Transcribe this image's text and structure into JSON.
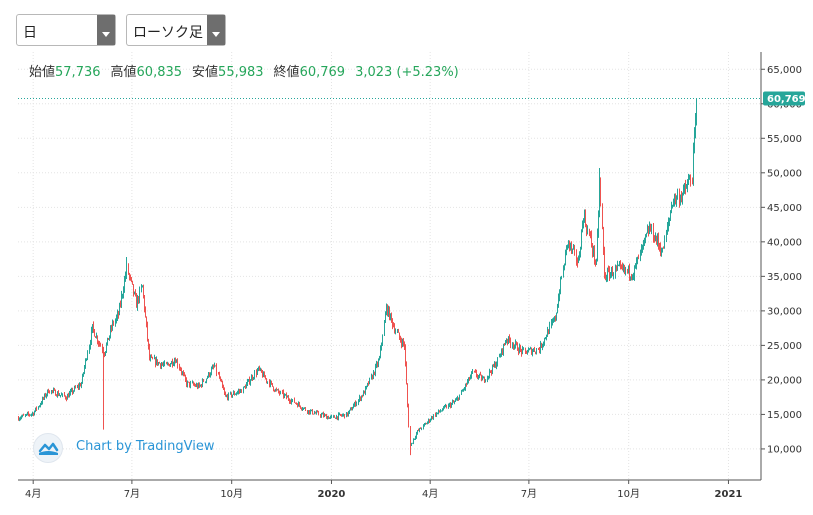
{
  "toolbar": {
    "interval_select": "日",
    "chart_type_select": "ローソク足"
  },
  "ohlc": {
    "open_label": "始値",
    "open": "57,736",
    "high_label": "高値",
    "high": "60,835",
    "low_label": "安値",
    "low": "55,983",
    "close_label": "終値",
    "close": "60,769",
    "change": "3,023 (+5.23%)"
  },
  "watermark": "Chart by TradingView",
  "colors": {
    "up": "#26a69a",
    "down": "#ef5350",
    "price_line": "#26a69a",
    "text_up": "#26a65b",
    "watermark": "#2a95d6"
  },
  "chart_data": {
    "type": "candlestick",
    "title": "",
    "xlabel": "",
    "ylabel": "",
    "ylim": [
      5500,
      67500
    ],
    "y_ticks": [
      10000,
      15000,
      20000,
      25000,
      30000,
      35000,
      40000,
      45000,
      50000,
      55000,
      60000,
      65000
    ],
    "y_tick_labels": [
      "10,000",
      "15,000",
      "20,000",
      "25,000",
      "30,000",
      "35,000",
      "40,000",
      "45,000",
      "50,000",
      "55,000",
      "60,000",
      "65,000"
    ],
    "x_range": [
      "2019-03-18",
      "2021-01-31"
    ],
    "x_ticks": [
      {
        "date": "2019-04-01",
        "label": "4月",
        "bold": false
      },
      {
        "date": "2019-07-01",
        "label": "7月",
        "bold": false
      },
      {
        "date": "2019-10-01",
        "label": "10月",
        "bold": false
      },
      {
        "date": "2020-01-01",
        "label": "2020",
        "bold": true
      },
      {
        "date": "2020-04-01",
        "label": "4月",
        "bold": false
      },
      {
        "date": "2020-07-01",
        "label": "7月",
        "bold": false
      },
      {
        "date": "2020-10-01",
        "label": "10月",
        "bold": false
      },
      {
        "date": "2021-01-01",
        "label": "2021",
        "bold": true
      }
    ],
    "last_price": 60769,
    "last_price_label": "60,769",
    "grid": true,
    "price_path": [
      [
        "2019-03-18",
        14500
      ],
      [
        "2019-04-01",
        15200
      ],
      [
        "2019-04-15",
        18500
      ],
      [
        "2019-05-01",
        17500
      ],
      [
        "2019-05-15",
        19500
      ],
      [
        "2019-05-25",
        27500
      ],
      [
        "2019-06-05",
        24000
      ],
      [
        "2019-06-13",
        28000
      ],
      [
        "2019-06-18",
        29500
      ],
      [
        "2019-06-26",
        36000
      ],
      [
        "2019-07-05",
        31000
      ],
      [
        "2019-07-10",
        33500
      ],
      [
        "2019-07-17",
        23000
      ],
      [
        "2019-08-01",
        22000
      ],
      [
        "2019-08-10",
        23000
      ],
      [
        "2019-08-20",
        19500
      ],
      [
        "2019-09-01",
        19000
      ],
      [
        "2019-09-15",
        22000
      ],
      [
        "2019-09-25",
        17500
      ],
      [
        "2019-10-10",
        18500
      ],
      [
        "2019-10-25",
        21500
      ],
      [
        "2019-11-10",
        18500
      ],
      [
        "2019-11-25",
        17000
      ],
      [
        "2019-12-10",
        15500
      ],
      [
        "2019-12-31",
        14500
      ],
      [
        "2020-01-15",
        15000
      ],
      [
        "2020-02-01",
        18500
      ],
      [
        "2020-02-14",
        23000
      ],
      [
        "2020-02-20",
        30500
      ],
      [
        "2020-03-03",
        26000
      ],
      [
        "2020-03-08",
        25000
      ],
      [
        "2020-03-13",
        10500
      ],
      [
        "2020-03-20",
        12500
      ],
      [
        "2020-04-05",
        15000
      ],
      [
        "2020-04-25",
        17000
      ],
      [
        "2020-05-10",
        21000
      ],
      [
        "2020-05-20",
        20000
      ],
      [
        "2020-06-01",
        22500
      ],
      [
        "2020-06-10",
        26000
      ],
      [
        "2020-06-25",
        24000
      ],
      [
        "2020-07-10",
        24500
      ],
      [
        "2020-07-25",
        29000
      ],
      [
        "2020-08-05",
        40000
      ],
      [
        "2020-08-15",
        37000
      ],
      [
        "2020-08-20",
        44000
      ],
      [
        "2020-09-01",
        36500
      ],
      [
        "2020-09-04",
        48500
      ],
      [
        "2020-09-08",
        35000
      ],
      [
        "2020-09-20",
        36000
      ],
      [
        "2020-10-05",
        35500
      ],
      [
        "2020-10-20",
        42000
      ],
      [
        "2020-11-01",
        38500
      ],
      [
        "2020-11-10",
        46000
      ],
      [
        "2020-11-20",
        47000
      ],
      [
        "2020-11-28",
        49500
      ],
      [
        "2020-12-01",
        57700
      ],
      [
        "2020-12-02",
        60769
      ]
    ],
    "notable_wicks": [
      {
        "date": "2019-06-04",
        "low": 12800
      },
      {
        "date": "2019-06-26",
        "high": 37800
      },
      {
        "date": "2020-03-13",
        "low": 9100
      },
      {
        "date": "2020-09-04",
        "high": 50700
      },
      {
        "date": "2020-12-02",
        "high": 60835
      }
    ]
  }
}
